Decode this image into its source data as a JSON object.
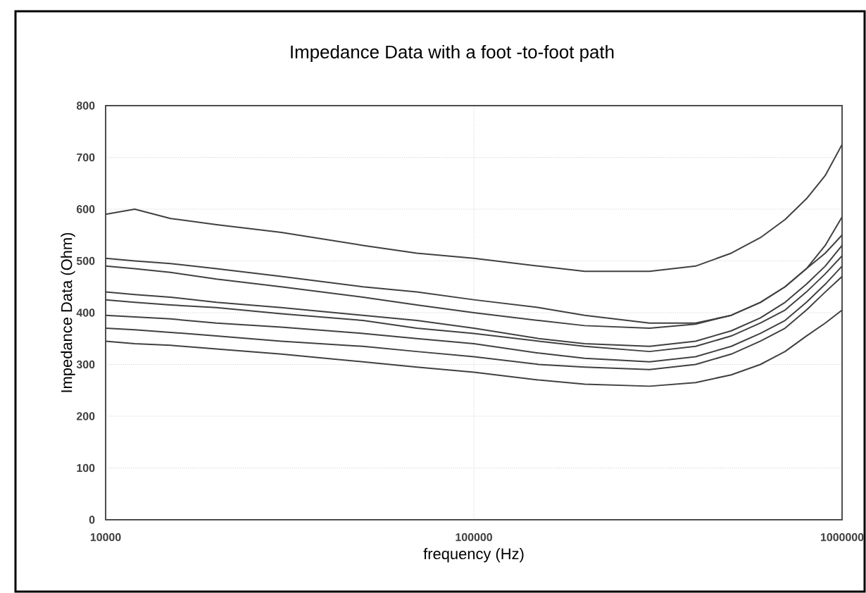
{
  "chart_data": {
    "type": "line",
    "title": "Impedance Data with a foot -to-foot path",
    "xlabel": "frequency (Hz)",
    "ylabel": "Impedance Data (Ohm)",
    "log": "x",
    "grid": true,
    "line_style": "solid",
    "marker": "none",
    "x": [
      10000,
      12000,
      15000,
      20000,
      30000,
      50000,
      70000,
      100000,
      150000,
      200000,
      300000,
      400000,
      500000,
      600000,
      700000,
      800000,
      900000,
      1000000
    ],
    "xlim": [
      10000,
      1000000
    ],
    "xticks": [
      10000,
      100000,
      1000000
    ],
    "ylim": [
      0,
      800
    ],
    "yticks": [
      0,
      100,
      200,
      300,
      400,
      500,
      600,
      700,
      800
    ],
    "series": [
      {
        "color": "#404040",
        "values": [
          590,
          600,
          582,
          570,
          555,
          530,
          515,
          505,
          490,
          480,
          480,
          490,
          515,
          545,
          580,
          620,
          665,
          725
        ]
      },
      {
        "color": "#404040",
        "values": [
          505,
          500,
          495,
          485,
          470,
          450,
          440,
          425,
          410,
          395,
          380,
          380,
          395,
          420,
          450,
          485,
          530,
          585
        ]
      },
      {
        "color": "#404040",
        "values": [
          490,
          485,
          478,
          465,
          450,
          430,
          415,
          400,
          385,
          375,
          370,
          378,
          395,
          420,
          450,
          485,
          515,
          550
        ]
      },
      {
        "color": "#404040",
        "values": [
          440,
          435,
          430,
          420,
          410,
          395,
          385,
          370,
          350,
          340,
          335,
          345,
          365,
          390,
          420,
          455,
          490,
          530
        ]
      },
      {
        "color": "#404040",
        "values": [
          425,
          420,
          415,
          410,
          398,
          385,
          370,
          360,
          345,
          335,
          325,
          335,
          355,
          380,
          405,
          440,
          475,
          510
        ]
      },
      {
        "color": "#404040",
        "values": [
          395,
          392,
          388,
          380,
          372,
          360,
          350,
          340,
          322,
          312,
          305,
          315,
          335,
          360,
          385,
          420,
          455,
          490
        ]
      },
      {
        "color": "#404040",
        "values": [
          370,
          367,
          362,
          355,
          345,
          335,
          325,
          315,
          300,
          295,
          290,
          300,
          320,
          345,
          370,
          405,
          440,
          470
        ]
      },
      {
        "color": "#404040",
        "values": [
          345,
          340,
          337,
          330,
          320,
          305,
          295,
          285,
          270,
          262,
          258,
          265,
          280,
          300,
          325,
          355,
          380,
          405
        ]
      }
    ]
  }
}
